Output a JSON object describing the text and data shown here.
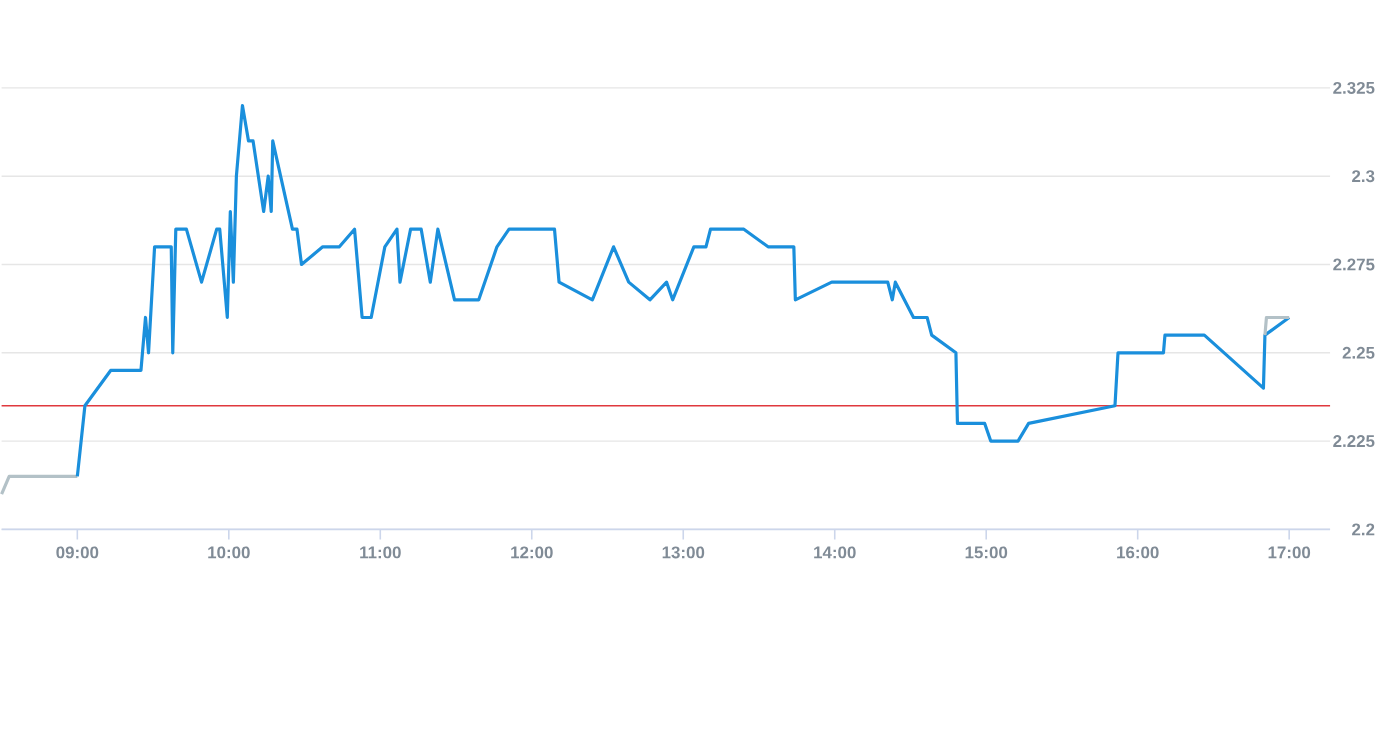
{
  "chart_data": {
    "type": "line",
    "xlim": [
      8.5,
      17.27
    ],
    "ylim": [
      2.2,
      2.325
    ],
    "xticks": [
      {
        "value": 9,
        "label": "09:00"
      },
      {
        "value": 10,
        "label": "10:00"
      },
      {
        "value": 11,
        "label": "11:00"
      },
      {
        "value": 12,
        "label": "12:00"
      },
      {
        "value": 13,
        "label": "13:00"
      },
      {
        "value": 14,
        "label": "14:00"
      },
      {
        "value": 15,
        "label": "15:00"
      },
      {
        "value": 16,
        "label": "16:00"
      },
      {
        "value": 17,
        "label": "17:00"
      }
    ],
    "yticks": [
      2.2,
      2.225,
      2.25,
      2.275,
      2.3,
      2.325
    ],
    "grid": "y",
    "marker": "none",
    "line_style": "solid",
    "ref_lines": [
      {
        "axis": "y",
        "value": 2.235,
        "color": "#e0393e"
      }
    ],
    "series": [
      {
        "color": "#b3c1c7",
        "x": [
          8.5,
          8.55,
          9.0
        ],
        "values": [
          2.21,
          2.215,
          2.215
        ]
      },
      {
        "color": "#1a8fdc",
        "x": [
          9.0,
          9.05,
          9.22,
          9.42,
          9.45,
          9.47,
          9.51,
          9.62,
          9.63,
          9.65,
          9.72,
          9.82,
          9.92,
          9.94,
          9.99,
          10.01,
          10.03,
          10.05,
          10.09,
          10.13,
          10.16,
          10.23,
          10.26,
          10.28,
          10.29,
          10.42,
          10.45,
          10.48,
          10.62,
          10.73,
          10.83,
          10.88,
          10.94,
          11.03,
          11.11,
          11.13,
          11.2,
          11.27,
          11.33,
          11.38,
          11.49,
          11.65,
          11.77,
          11.85,
          12.15,
          12.18,
          12.4,
          12.54,
          12.64,
          12.78,
          12.89,
          12.93,
          13.07,
          13.15,
          13.18,
          13.4,
          13.56,
          13.73,
          13.74,
          13.98,
          14.35,
          14.38,
          14.4,
          14.52,
          14.61,
          14.64,
          14.8,
          14.81,
          14.99,
          15.03,
          15.21,
          15.28,
          15.85,
          15.87,
          16.17,
          16.18,
          16.44,
          16.83,
          16.84,
          17.0
        ],
        "values": [
          2.215,
          2.235,
          2.245,
          2.245,
          2.26,
          2.25,
          2.28,
          2.28,
          2.25,
          2.285,
          2.285,
          2.27,
          2.285,
          2.285,
          2.26,
          2.29,
          2.27,
          2.3,
          2.32,
          2.31,
          2.31,
          2.29,
          2.3,
          2.29,
          2.31,
          2.285,
          2.285,
          2.275,
          2.28,
          2.28,
          2.285,
          2.26,
          2.26,
          2.28,
          2.285,
          2.27,
          2.285,
          2.285,
          2.27,
          2.285,
          2.265,
          2.265,
          2.28,
          2.285,
          2.285,
          2.27,
          2.265,
          2.28,
          2.27,
          2.265,
          2.27,
          2.265,
          2.28,
          2.28,
          2.285,
          2.285,
          2.28,
          2.28,
          2.265,
          2.27,
          2.27,
          2.265,
          2.27,
          2.26,
          2.26,
          2.255,
          2.25,
          2.23,
          2.23,
          2.225,
          2.225,
          2.23,
          2.235,
          2.25,
          2.25,
          2.255,
          2.255,
          2.24,
          2.255,
          2.26
        ]
      },
      {
        "color": "#b3c1c7",
        "x": [
          16.84,
          16.85,
          17.0
        ],
        "values": [
          2.255,
          2.26,
          2.26
        ]
      }
    ]
  }
}
